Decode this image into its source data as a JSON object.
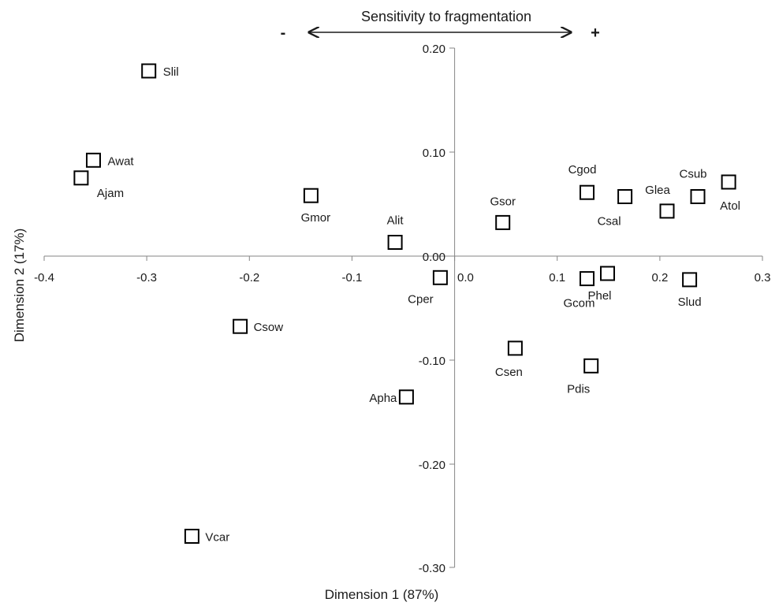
{
  "chart_data": {
    "type": "scatter",
    "title": "",
    "xlabel": "Dimension 1 (87%)",
    "ylabel": "Dimension 2 (17%)",
    "xlim": [
      -0.4,
      0.3
    ],
    "ylim": [
      -0.3,
      0.2
    ],
    "x_ticks": [
      "-0.4",
      "-0.3",
      "-0.2",
      "-0.1",
      "0.0",
      "0.1",
      "0.2",
      "0.3"
    ],
    "y_ticks": [
      "0.20",
      "0.10",
      "0.00",
      "-0.10",
      "-0.20",
      "-0.30"
    ],
    "grid": false,
    "legend": "none",
    "marker": "open-square",
    "annotation": {
      "text": "Sensitivity to fragmentation",
      "minus": "-",
      "plus": "+"
    },
    "points": [
      {
        "label": "Slil",
        "x": -0.298,
        "y": 0.178
      },
      {
        "label": "Awat",
        "x": -0.352,
        "y": 0.092
      },
      {
        "label": "Ajam",
        "x": -0.364,
        "y": 0.075
      },
      {
        "label": "Gmor",
        "x": -0.14,
        "y": 0.058
      },
      {
        "label": "Alit",
        "x": -0.058,
        "y": 0.013
      },
      {
        "label": "Cper",
        "x": -0.014,
        "y": -0.021
      },
      {
        "label": "Csow",
        "x": -0.209,
        "y": -0.068
      },
      {
        "label": "Apha",
        "x": -0.047,
        "y": -0.136
      },
      {
        "label": "Vcar",
        "x": -0.256,
        "y": -0.27
      },
      {
        "label": "Gsor",
        "x": 0.047,
        "y": 0.032
      },
      {
        "label": "Cgod",
        "x": 0.129,
        "y": 0.061
      },
      {
        "label": "Csal",
        "x": 0.166,
        "y": 0.057
      },
      {
        "label": "Glea",
        "x": 0.207,
        "y": 0.043
      },
      {
        "label": "Csub",
        "x": 0.237,
        "y": 0.057
      },
      {
        "label": "Atol",
        "x": 0.267,
        "y": 0.071
      },
      {
        "label": "Gcom",
        "x": 0.129,
        "y": -0.022
      },
      {
        "label": "Phel",
        "x": 0.149,
        "y": -0.017
      },
      {
        "label": "Slud",
        "x": 0.229,
        "y": -0.023
      },
      {
        "label": "Csen",
        "x": 0.059,
        "y": -0.089
      },
      {
        "label": "Pdis",
        "x": 0.133,
        "y": -0.106
      }
    ]
  }
}
